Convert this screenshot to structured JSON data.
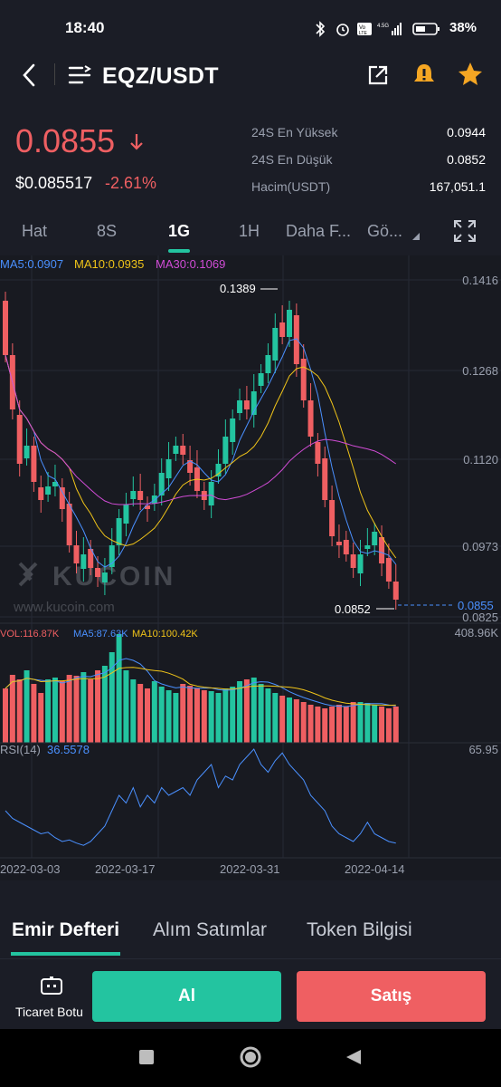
{
  "status_bar": {
    "time": "18:40",
    "battery": "38%"
  },
  "header": {
    "pair": "EQZ/USDT"
  },
  "ticker": {
    "price": "0.0855",
    "usd_price": "$0.085517",
    "change": "-2.61%",
    "stats": [
      {
        "label": "24S En Yüksek",
        "value": "0.0944"
      },
      {
        "label": "24S En Düşük",
        "value": "0.0852"
      },
      {
        "label": "Hacim(USDT)",
        "value": "167,051.1"
      }
    ]
  },
  "timeframes": [
    "Hat",
    "8S",
    "1G",
    "1H",
    "Daha F...",
    "Gö..."
  ],
  "indicators": {
    "ma": [
      {
        "label": "MA5:0.0907",
        "color": "#4a90ff"
      },
      {
        "label": "MA10:0.0935",
        "color": "#f0c419"
      },
      {
        "label": "MA30:0.1069",
        "color": "#d14cd6"
      }
    ],
    "vol": [
      {
        "label": "VOL:116.87K",
        "color": "#ef5f62"
      },
      {
        "label": "MA5:87.63K",
        "color": "#4a90ff"
      },
      {
        "label": "MA10:100.42K",
        "color": "#f0c419"
      }
    ],
    "rsi": {
      "label": "RSI(14)",
      "value": "36.5578",
      "color": "#4a90ff"
    }
  },
  "watermark": {
    "brand": "KUCOIN",
    "url": "www.kucoin.com"
  },
  "chart_data": {
    "type": "candlestick",
    "y_axis_labels": [
      "0.1416",
      "0.1268",
      "0.1120",
      "0.0973",
      "0.0825"
    ],
    "ylim": [
      0.0825,
      0.1416
    ],
    "price_marker": "0.0855",
    "high_label": "0.1389",
    "low_label": "0.0852",
    "volume_axis_label": "408.96K",
    "rsi_axis_label": "65.95",
    "x_labels": [
      "2022-03-03",
      "2022-03-17",
      "2022-03-31",
      "2022-04-14"
    ],
    "colors": {
      "up": "#23c4a0",
      "down": "#ef5f62",
      "ma5": "#4a90ff",
      "ma10": "#f0c419",
      "ma30": "#d14cd6"
    }
  },
  "bottom_tabs": [
    "Emir Defteri",
    "Alım Satımlar",
    "Token Bilgisi"
  ],
  "actions": {
    "bot_label": "Ticaret Botu",
    "buy_label": "Al",
    "sell_label": "Satış"
  },
  "colors": {
    "accent": "#23c4a0",
    "sell": "#ef5f62",
    "star": "#f5a623"
  }
}
